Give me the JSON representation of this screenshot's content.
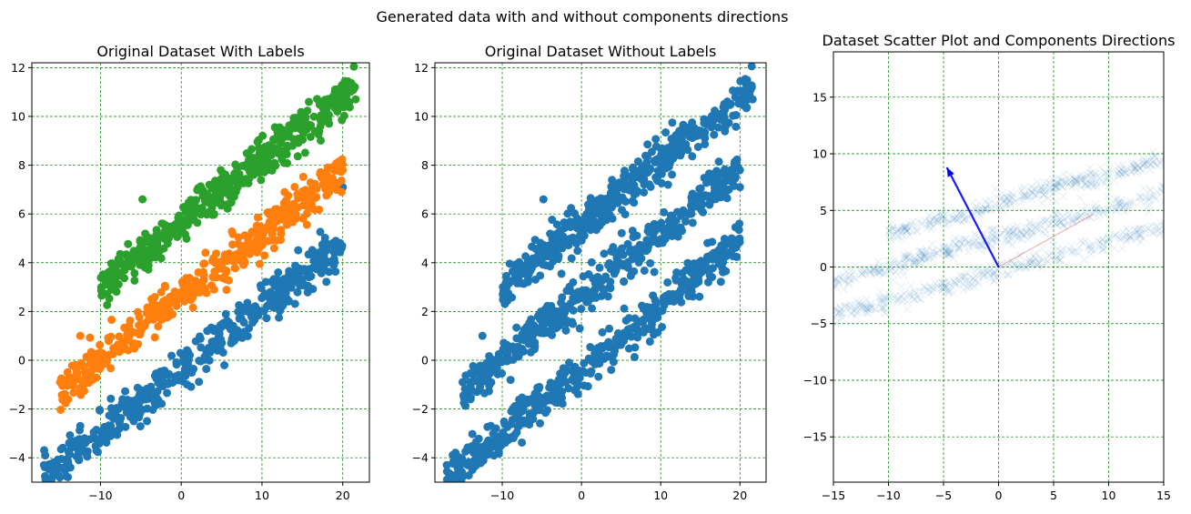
{
  "figure": {
    "suptitle": "Generated data with and without components directions"
  },
  "colors": {
    "blue": "#1f77b4",
    "orange": "#ff7f0e",
    "green": "#2ca02c",
    "grid": "#008000",
    "arrow": "#0000ff",
    "arrow_minor": "#d62728"
  },
  "chart_data": [
    {
      "type": "scatter",
      "title": "Original Dataset With Labels",
      "xlabel": "",
      "ylabel": "",
      "xlim": [
        -18.5,
        23.3
      ],
      "ylim": [
        -5.0,
        12.2
      ],
      "xticks": [
        -10,
        0,
        10,
        20
      ],
      "yticks": [
        -4,
        -2,
        0,
        2,
        4,
        6,
        8,
        10,
        12
      ],
      "grid": true,
      "legend": "none",
      "series": [
        {
          "color": "#1f77b4",
          "slope": 0.26,
          "intercept": -0.4,
          "x_range": [
            -17,
            20
          ],
          "spread": 0.75,
          "points": 450,
          "outliers": [
            [
              -17,
              -4.3
            ],
            [
              -14,
              -4.2
            ],
            [
              12,
              3.6
            ],
            [
              18,
              4.5
            ],
            [
              16.7,
              4.4
            ],
            [
              20,
              7.1
            ]
          ]
        },
        {
          "color": "#ff7f0e",
          "slope": 0.26,
          "intercept": 2.6,
          "x_range": [
            -15,
            20
          ],
          "spread": 0.75,
          "points": 450,
          "outliers": [
            [
              -15,
              -0.9
            ],
            [
              -14,
              -1.6
            ],
            [
              -12.5,
              1.0
            ],
            [
              20,
              7.8
            ]
          ]
        },
        {
          "color": "#2ca02c",
          "slope": 0.26,
          "intercept": 5.6,
          "x_range": [
            -10,
            21.5
          ],
          "spread": 0.75,
          "points": 450,
          "outliers": [
            [
              -9.8,
              2.8
            ],
            [
              -4.8,
              6.6
            ],
            [
              21.5,
              11.2
            ],
            [
              21.6,
              10.7
            ]
          ]
        }
      ]
    },
    {
      "type": "scatter",
      "title": "Original Dataset Without Labels",
      "xlabel": "",
      "ylabel": "",
      "xlim": [
        -18.5,
        23.3
      ],
      "ylim": [
        -5.0,
        12.2
      ],
      "xticks": [
        -10,
        0,
        10,
        20
      ],
      "yticks": [
        -4,
        -2,
        0,
        2,
        4,
        6,
        8,
        10,
        12
      ],
      "grid": true,
      "legend": "none",
      "series": [
        {
          "color": "#1f77b4",
          "slope": 0.26,
          "intercept": -0.4,
          "x_range": [
            -17,
            20
          ],
          "spread": 0.75,
          "points": 450,
          "outliers": [
            [
              -17,
              -4.3
            ],
            [
              -14,
              -4.2
            ],
            [
              12,
              3.6
            ],
            [
              18,
              4.5
            ],
            [
              16.7,
              4.4
            ],
            [
              20,
              7.1
            ]
          ]
        },
        {
          "color": "#1f77b4",
          "slope": 0.26,
          "intercept": 2.6,
          "x_range": [
            -15,
            20
          ],
          "spread": 0.75,
          "points": 450,
          "outliers": [
            [
              -15,
              -0.9
            ],
            [
              -14,
              -1.6
            ],
            [
              -12.5,
              1.0
            ],
            [
              20,
              7.8
            ]
          ]
        },
        {
          "color": "#1f77b4",
          "slope": 0.26,
          "intercept": 5.6,
          "x_range": [
            -10,
            21.5
          ],
          "spread": 0.75,
          "points": 450,
          "outliers": [
            [
              -9.8,
              2.8
            ],
            [
              -4.8,
              6.6
            ],
            [
              21.5,
              11.2
            ],
            [
              21.6,
              10.7
            ]
          ]
        }
      ]
    },
    {
      "type": "scatter",
      "title": "Dataset Scatter Plot and Components Directions",
      "xlabel": "",
      "ylabel": "",
      "xlim": [
        -15,
        15
      ],
      "ylim": [
        -19,
        19
      ],
      "xticks": [
        -15,
        -10,
        -5,
        0,
        5,
        10,
        15
      ],
      "yticks": [
        -15,
        -10,
        -5,
        0,
        5,
        10,
        15
      ],
      "grid": true,
      "legend": "none",
      "marker": "x",
      "series": [
        {
          "color": "#1f77b4",
          "slope": 0.26,
          "intercept": -0.4,
          "x_range": [
            -17,
            20
          ],
          "spread": 0.75,
          "points": 450
        },
        {
          "color": "#1f77b4",
          "slope": 0.26,
          "intercept": 2.6,
          "x_range": [
            -15,
            20
          ],
          "spread": 0.75,
          "points": 450
        },
        {
          "color": "#1f77b4",
          "slope": 0.26,
          "intercept": 5.6,
          "x_range": [
            -10,
            21.5
          ],
          "spread": 0.75,
          "points": 450
        }
      ],
      "arrows": [
        {
          "from": [
            0,
            0
          ],
          "to": [
            -4.7,
            8.8
          ],
          "color": "#0000ff"
        },
        {
          "from": [
            0,
            0
          ],
          "to": [
            8.5,
            4.6
          ],
          "color": "#d62728"
        }
      ]
    }
  ]
}
